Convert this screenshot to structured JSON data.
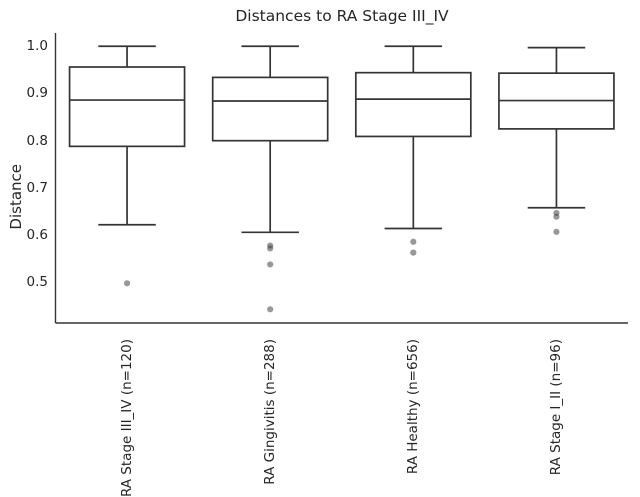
{
  "chart_data": {
    "type": "box",
    "title": "Distances to RA Stage III_IV",
    "xlabel": "",
    "ylabel": "Distance",
    "ylim": [
      0.414,
      1.028
    ],
    "yticks": [
      1.0,
      0.9,
      0.8,
      0.7,
      0.6,
      0.5
    ],
    "ytick_labels": [
      "1.0",
      "0.9",
      "0.8",
      "0.7",
      "0.6",
      "0.5"
    ],
    "grid": false,
    "legend": "none",
    "categories": [
      "RA Stage III_IV (n=120)",
      "RA Gingivitis (n=288)",
      "RA Healthy (n=656)",
      "RA Stage I_II (n=96)"
    ],
    "boxes": [
      {
        "category": "RA Stage III_IV (n=120)",
        "whisker_high": 1.0,
        "q3": 0.956,
        "median": 0.886,
        "q1": 0.788,
        "whisker_low": 0.622,
        "outliers": [
          0.498
        ]
      },
      {
        "category": "RA Gingivitis (n=288)",
        "whisker_high": 1.0,
        "q3": 0.934,
        "median": 0.884,
        "q1": 0.8,
        "whisker_low": 0.606,
        "outliers": [
          0.578,
          0.572,
          0.538,
          0.443
        ]
      },
      {
        "category": "RA Healthy (n=656)",
        "whisker_high": 1.0,
        "q3": 0.944,
        "median": 0.888,
        "q1": 0.809,
        "whisker_low": 0.614,
        "outliers": [
          0.586,
          0.563
        ]
      },
      {
        "category": "RA Stage I_II (n=96)",
        "whisker_high": 0.997,
        "q3": 0.943,
        "median": 0.885,
        "q1": 0.825,
        "whisker_low": 0.658,
        "outliers": [
          0.647,
          0.639,
          0.607
        ]
      }
    ],
    "colors": {
      "line": "#343434",
      "box_fill": "#ffffff",
      "text": "#262626",
      "outlier": "#3a3a3a",
      "background": "#ffffff"
    }
  }
}
